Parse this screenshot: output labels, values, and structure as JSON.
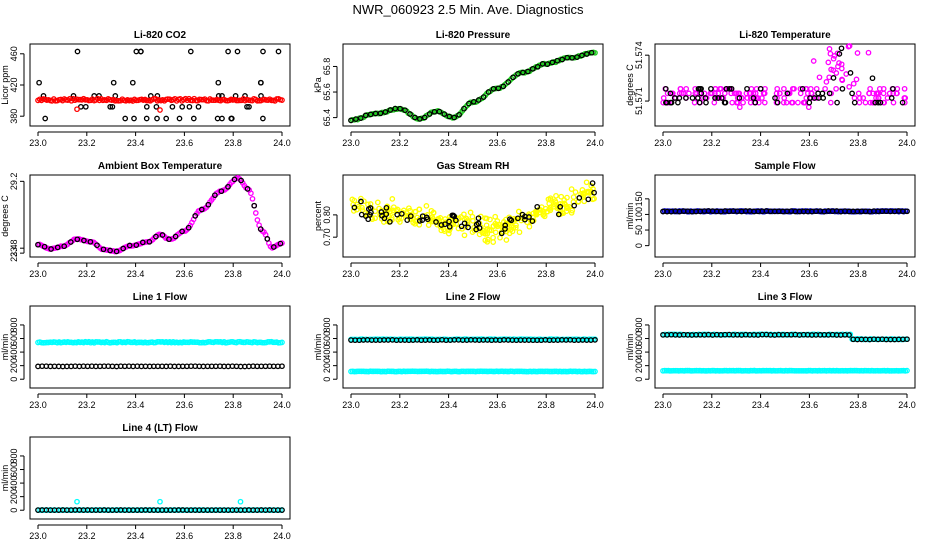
{
  "title": "NWR_060923  2.5 Min. Ave. Diagnostics",
  "colors": {
    "black": "#000000",
    "red": "#ff0000",
    "green": "#22cc22",
    "magenta": "#ff00ff",
    "yellow": "#ffff00",
    "blue": "#0000cc",
    "cyan": "#00ffff"
  },
  "chart_data": [
    {
      "type": "scatter",
      "title": "Li-820 CO2",
      "ylabel": "Licor ppm",
      "xlim": [
        23.0,
        24.0
      ],
      "ylim": [
        370,
        470
      ],
      "xticks": [
        "23.0",
        "23.2",
        "23.4",
        "23.6",
        "23.8",
        "24.0"
      ],
      "yticks": [
        {
          "v": 380,
          "label": "380"
        },
        {
          "v": 420,
          "label": "420"
        },
        {
          "v": 460,
          "label": "460"
        }
      ],
      "series": [
        {
          "name": "bands",
          "color": "black",
          "pattern": "bands",
          "levels": [
            377,
            392,
            406,
            423,
            463
          ],
          "n": 52,
          "seed": 3
        },
        {
          "name": "baseline",
          "color": "red",
          "pattern": "flat",
          "value": 401,
          "noise": 1.5,
          "n": 140,
          "seed": 5
        },
        {
          "name": "red-low",
          "color": "red",
          "pattern": "points",
          "points": [
            [
              23.16,
              389
            ],
            [
              23.5,
              388
            ]
          ]
        }
      ]
    },
    {
      "type": "line",
      "title": "Li-820 Pressure",
      "ylabel": "kPa",
      "xlim": [
        23.0,
        24.0
      ],
      "ylim": [
        65.35,
        65.96
      ],
      "xticks": [
        "23.0",
        "23.2",
        "23.4",
        "23.6",
        "23.8",
        "24.0"
      ],
      "yticks": [
        {
          "v": 65.4,
          "label": "65.4"
        },
        {
          "v": 65.6,
          "label": "65.6"
        },
        {
          "v": 65.8,
          "label": "65.8"
        }
      ],
      "series": [
        {
          "name": "pressure",
          "color": "green",
          "pattern": "knots",
          "n": 150,
          "noise": 0.004,
          "seed": 7,
          "knots": [
            [
              23.0,
              65.38
            ],
            [
              23.1,
              65.43
            ],
            [
              23.2,
              65.47
            ],
            [
              23.28,
              65.39
            ],
            [
              23.35,
              65.45
            ],
            [
              23.42,
              65.4
            ],
            [
              23.5,
              65.52
            ],
            [
              23.6,
              65.63
            ],
            [
              23.7,
              65.75
            ],
            [
              23.8,
              65.82
            ],
            [
              23.9,
              65.87
            ],
            [
              24.0,
              65.91
            ]
          ]
        },
        {
          "name": "pressure-black",
          "color": "black",
          "pattern": "subsample",
          "from": 0,
          "step": 3
        }
      ]
    },
    {
      "type": "scatter",
      "title": "Li-820 Temperature",
      "ylabel": "degrees C",
      "xlim": [
        23.0,
        24.0
      ],
      "ylim": [
        51.5695,
        51.5746
      ],
      "xticks": [
        "23.0",
        "23.2",
        "23.4",
        "23.6",
        "23.8",
        "24.0"
      ],
      "yticks": [
        {
          "v": 51.571,
          "label": "51.571"
        },
        {
          "v": 51.574,
          "label": "51.574"
        }
      ],
      "series": [
        {
          "name": "temp-magenta",
          "color": "magenta",
          "pattern": "temp",
          "n": 190,
          "seed": 11
        },
        {
          "name": "temp-black",
          "color": "black",
          "pattern": "temp",
          "n": 60,
          "seed": 13
        }
      ]
    },
    {
      "type": "line",
      "title": "Ambient Box Temperature",
      "ylabel": "degrees C",
      "xlim": [
        23.0,
        24.0
      ],
      "ylim": [
        23.25,
        29.55
      ],
      "xticks": [
        "23.0",
        "23.2",
        "23.4",
        "23.6",
        "23.8",
        "24.0"
      ],
      "yticks": [
        {
          "v": 23.4,
          "label": "23.4"
        },
        {
          "v": 23.8,
          "label": "23.8"
        },
        {
          "v": 29.2,
          "label": "29.2"
        }
      ],
      "series": [
        {
          "name": "box-temp",
          "color": "magenta",
          "pattern": "knots",
          "n": 150,
          "noise": 0.03,
          "seed": 17,
          "knots": [
            [
              23.0,
              24.1
            ],
            [
              23.05,
              23.75
            ],
            [
              23.1,
              23.95
            ],
            [
              23.16,
              24.55
            ],
            [
              23.22,
              24.3
            ],
            [
              23.27,
              23.7
            ],
            [
              23.32,
              23.55
            ],
            [
              23.38,
              24.0
            ],
            [
              23.45,
              24.3
            ],
            [
              23.5,
              24.9
            ],
            [
              23.54,
              24.5
            ],
            [
              23.6,
              25.2
            ],
            [
              23.67,
              26.9
            ],
            [
              23.75,
              28.4
            ],
            [
              23.82,
              29.45
            ],
            [
              23.86,
              28.6
            ],
            [
              23.92,
              25.2
            ],
            [
              23.96,
              23.85
            ],
            [
              24.0,
              24.2
            ]
          ]
        },
        {
          "name": "box-temp-black",
          "color": "black",
          "pattern": "subsample",
          "from": 0,
          "step": 4
        }
      ]
    },
    {
      "type": "scatter",
      "title": "Gas Stream RH",
      "ylabel": "percent",
      "xlim": [
        23.0,
        24.0
      ],
      "ylim": [
        0.62,
        0.97
      ],
      "xticks": [
        "23.0",
        "23.2",
        "23.4",
        "23.6",
        "23.8",
        "24.0"
      ],
      "yticks": [
        {
          "v": 0.7,
          "label": "0.70"
        },
        {
          "v": 0.8,
          "label": "0.80"
        }
      ],
      "series": [
        {
          "name": "rh-yellow",
          "color": "yellow",
          "pattern": "rh",
          "n": 300,
          "spread": 0.055,
          "seed": 19
        },
        {
          "name": "rh-black",
          "color": "black",
          "pattern": "rh",
          "n": 60,
          "spread": 0.04,
          "seed": 23
        }
      ]
    },
    {
      "type": "scatter",
      "title": "Sample Flow",
      "ylabel": "ml/min",
      "xlim": [
        23.0,
        24.0
      ],
      "ylim": [
        -30,
        220
      ],
      "xticks": [
        "23.0",
        "23.2",
        "23.4",
        "23.6",
        "23.8",
        "24.0"
      ],
      "yticks": [
        {
          "v": 0,
          "label": "0"
        },
        {
          "v": 50,
          "label": "50"
        },
        {
          "v": 100,
          "label": "100"
        },
        {
          "v": 150,
          "label": "150"
        }
      ],
      "series": [
        {
          "name": "sample-flow",
          "color": "blue",
          "pattern": "flat",
          "value": 110,
          "noise": 1.2,
          "n": 150,
          "seed": 29
        },
        {
          "name": "sample-flow-black",
          "color": "black",
          "pattern": "flat",
          "value": 110,
          "noise": 1.0,
          "n": 60,
          "seed": 31
        }
      ]
    },
    {
      "type": "scatter",
      "title": "Line 1 Flow",
      "ylabel": "ml/min",
      "xlim": [
        23.0,
        24.0
      ],
      "ylim": [
        -100,
        1050
      ],
      "xticks": [
        "23.0",
        "23.2",
        "23.4",
        "23.6",
        "23.8",
        "24.0"
      ],
      "yticks": [
        {
          "v": 0,
          "label": "0"
        },
        {
          "v": 200,
          "label": "200"
        },
        {
          "v": 400,
          "label": "400"
        },
        {
          "v": 600,
          "label": "600"
        },
        {
          "v": 800,
          "label": "800"
        }
      ],
      "series": [
        {
          "name": "line1-cyan",
          "color": "cyan",
          "pattern": "flat",
          "value": 545,
          "noise": 8,
          "n": 140,
          "seed": 37
        },
        {
          "name": "line1-black",
          "color": "black",
          "pattern": "flat",
          "value": 190,
          "noise": 2,
          "n": 60,
          "seed": 41
        }
      ]
    },
    {
      "type": "scatter",
      "title": "Line 2 Flow",
      "ylabel": "ml/min",
      "xlim": [
        23.0,
        24.0
      ],
      "ylim": [
        -100,
        1050
      ],
      "xticks": [
        "23.0",
        "23.2",
        "23.4",
        "23.6",
        "23.8",
        "24.0"
      ],
      "yticks": [
        {
          "v": 0,
          "label": "0"
        },
        {
          "v": 200,
          "label": "200"
        },
        {
          "v": 400,
          "label": "400"
        },
        {
          "v": 600,
          "label": "600"
        },
        {
          "v": 800,
          "label": "800"
        }
      ],
      "series": [
        {
          "name": "line2-cyan-high",
          "color": "cyan",
          "pattern": "flat",
          "value": 588,
          "noise": 4,
          "n": 130,
          "seed": 43
        },
        {
          "name": "line2-cyan-low",
          "color": "cyan",
          "pattern": "flat",
          "value": 115,
          "noise": 3,
          "n": 140,
          "seed": 47
        },
        {
          "name": "line2-black",
          "color": "black",
          "pattern": "flat",
          "value": 578,
          "noise": 3,
          "n": 60,
          "seed": 53
        }
      ]
    },
    {
      "type": "scatter",
      "title": "Line 3 Flow",
      "ylabel": "ml/min",
      "xlim": [
        23.0,
        24.0
      ],
      "ylim": [
        -100,
        1050
      ],
      "xticks": [
        "23.0",
        "23.2",
        "23.4",
        "23.6",
        "23.8",
        "24.0"
      ],
      "yticks": [
        {
          "v": 0,
          "label": "0"
        },
        {
          "v": 200,
          "label": "200"
        },
        {
          "v": 400,
          "label": "400"
        },
        {
          "v": 600,
          "label": "600"
        },
        {
          "v": 800,
          "label": "800"
        }
      ],
      "series": [
        {
          "name": "line3-cyan-high",
          "color": "cyan",
          "pattern": "step",
          "before": 658,
          "after": 590,
          "at": 23.77,
          "noise": 4,
          "n": 130,
          "seed": 59
        },
        {
          "name": "line3-cyan-low",
          "color": "cyan",
          "pattern": "flat",
          "value": 125,
          "noise": 3,
          "n": 140,
          "seed": 61
        },
        {
          "name": "line3-black",
          "color": "black",
          "pattern": "step",
          "before": 655,
          "after": 588,
          "at": 23.77,
          "noise": 3,
          "n": 60,
          "seed": 67
        }
      ]
    },
    {
      "type": "scatter",
      "title": "Line 4 (LT) Flow",
      "ylabel": "ml/min",
      "xlim": [
        23.0,
        24.0
      ],
      "ylim": [
        -100,
        1050
      ],
      "xticks": [
        "23.0",
        "23.2",
        "23.4",
        "23.6",
        "23.8",
        "24.0"
      ],
      "yticks": [
        {
          "v": 0,
          "label": "0"
        },
        {
          "v": 200,
          "label": "200"
        },
        {
          "v": 400,
          "label": "400"
        },
        {
          "v": 600,
          "label": "600"
        },
        {
          "v": 800,
          "label": "800"
        }
      ],
      "series": [
        {
          "name": "line4-cyan",
          "color": "cyan",
          "pattern": "flat",
          "value": 2,
          "noise": 1,
          "n": 120,
          "seed": 71
        },
        {
          "name": "line4-cyan-spikes",
          "color": "cyan",
          "pattern": "points",
          "points": [
            [
              23.16,
              125
            ],
            [
              23.5,
              125
            ],
            [
              23.83,
              125
            ]
          ]
        },
        {
          "name": "line4-black",
          "color": "black",
          "pattern": "flat",
          "value": 2,
          "noise": 1,
          "n": 60,
          "seed": 73
        }
      ]
    }
  ]
}
